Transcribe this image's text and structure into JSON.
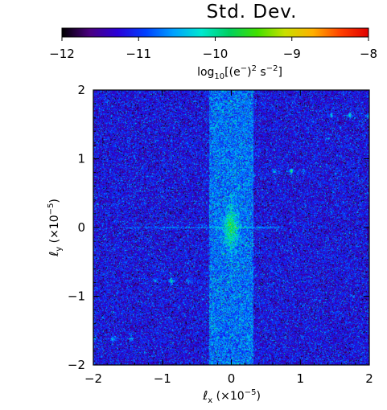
{
  "chart_data": {
    "type": "heatmap",
    "title": "Std. Dev.",
    "colorbar": {
      "range": [
        -12,
        -8
      ],
      "tick_values": [
        -12,
        -11,
        -10,
        -9,
        -8
      ],
      "tick_labels": [
        "−12",
        "−11",
        "−10",
        "−9",
        "−8"
      ],
      "label_parts": {
        "lead": "log",
        "sub": "10",
        "mid": "[(e",
        "sup1": "−",
        "mid2": ")",
        "sup2": "2",
        "tail": " s",
        "sup3": "−2",
        "end": "]"
      },
      "colormap": [
        "#000000",
        "#4a0080",
        "#2a00d8",
        "#0040ff",
        "#00a0ff",
        "#00e8d0",
        "#00d060",
        "#40e000",
        "#c8e000",
        "#ffb000",
        "#ff4000",
        "#e00000"
      ]
    },
    "x_axis": {
      "range": [
        -2,
        2
      ],
      "tick_values": [
        -2,
        -1,
        0,
        1,
        2
      ],
      "tick_labels": [
        "−2",
        "−1",
        "0",
        "1",
        "2"
      ],
      "label_parts": {
        "symbol": "ℓ",
        "sub": "x",
        "mid": " (×10",
        "sup": "−5",
        "end": ")"
      }
    },
    "y_axis": {
      "range": [
        -2,
        2
      ],
      "tick_values": [
        -2,
        -1,
        0,
        1,
        2
      ],
      "tick_labels": [
        "−2",
        "−1",
        "0",
        "1",
        "2"
      ],
      "label_parts": {
        "symbol": "ℓ",
        "sub": "y",
        "mid": " (×10",
        "sup": "−5",
        "end": ")"
      }
    },
    "background_level": -11.2,
    "features": {
      "central_peak": {
        "x": 0.0,
        "y": 0.0,
        "level": -10.0
      },
      "vertical_band": {
        "x_range": [
          -0.32,
          0.32
        ],
        "level": -10.9
      },
      "horizontal_streak": {
        "y": 0.0,
        "x_range": [
          -1.6,
          0.7
        ],
        "level": -10.5
      },
      "vertical_streak": {
        "x": 0.0,
        "y_range": [
          -0.8,
          0.5
        ],
        "level": -10.4
      },
      "satellite_peaks": [
        {
          "x": 0.87,
          "y": 0.82,
          "level": -10.4
        },
        {
          "x": -0.87,
          "y": -0.78,
          "level": -10.4
        },
        {
          "x": 1.72,
          "y": 1.63,
          "level": -10.5
        },
        {
          "x": -1.72,
          "y": -1.62,
          "level": -10.5
        },
        {
          "x": 1.45,
          "y": 1.63,
          "level": -10.7
        },
        {
          "x": -1.45,
          "y": -1.62,
          "level": -10.7
        },
        {
          "x": 0.62,
          "y": 0.82,
          "level": -10.8
        },
        {
          "x": -0.62,
          "y": -0.78,
          "level": -10.8
        },
        {
          "x": 1.05,
          "y": 0.82,
          "level": -10.9
        },
        {
          "x": -1.1,
          "y": -0.78,
          "level": -10.9
        },
        {
          "x": 1.98,
          "y": 1.63,
          "level": -10.9
        },
        {
          "x": -1.98,
          "y": -1.62,
          "level": -10.9
        }
      ]
    }
  }
}
